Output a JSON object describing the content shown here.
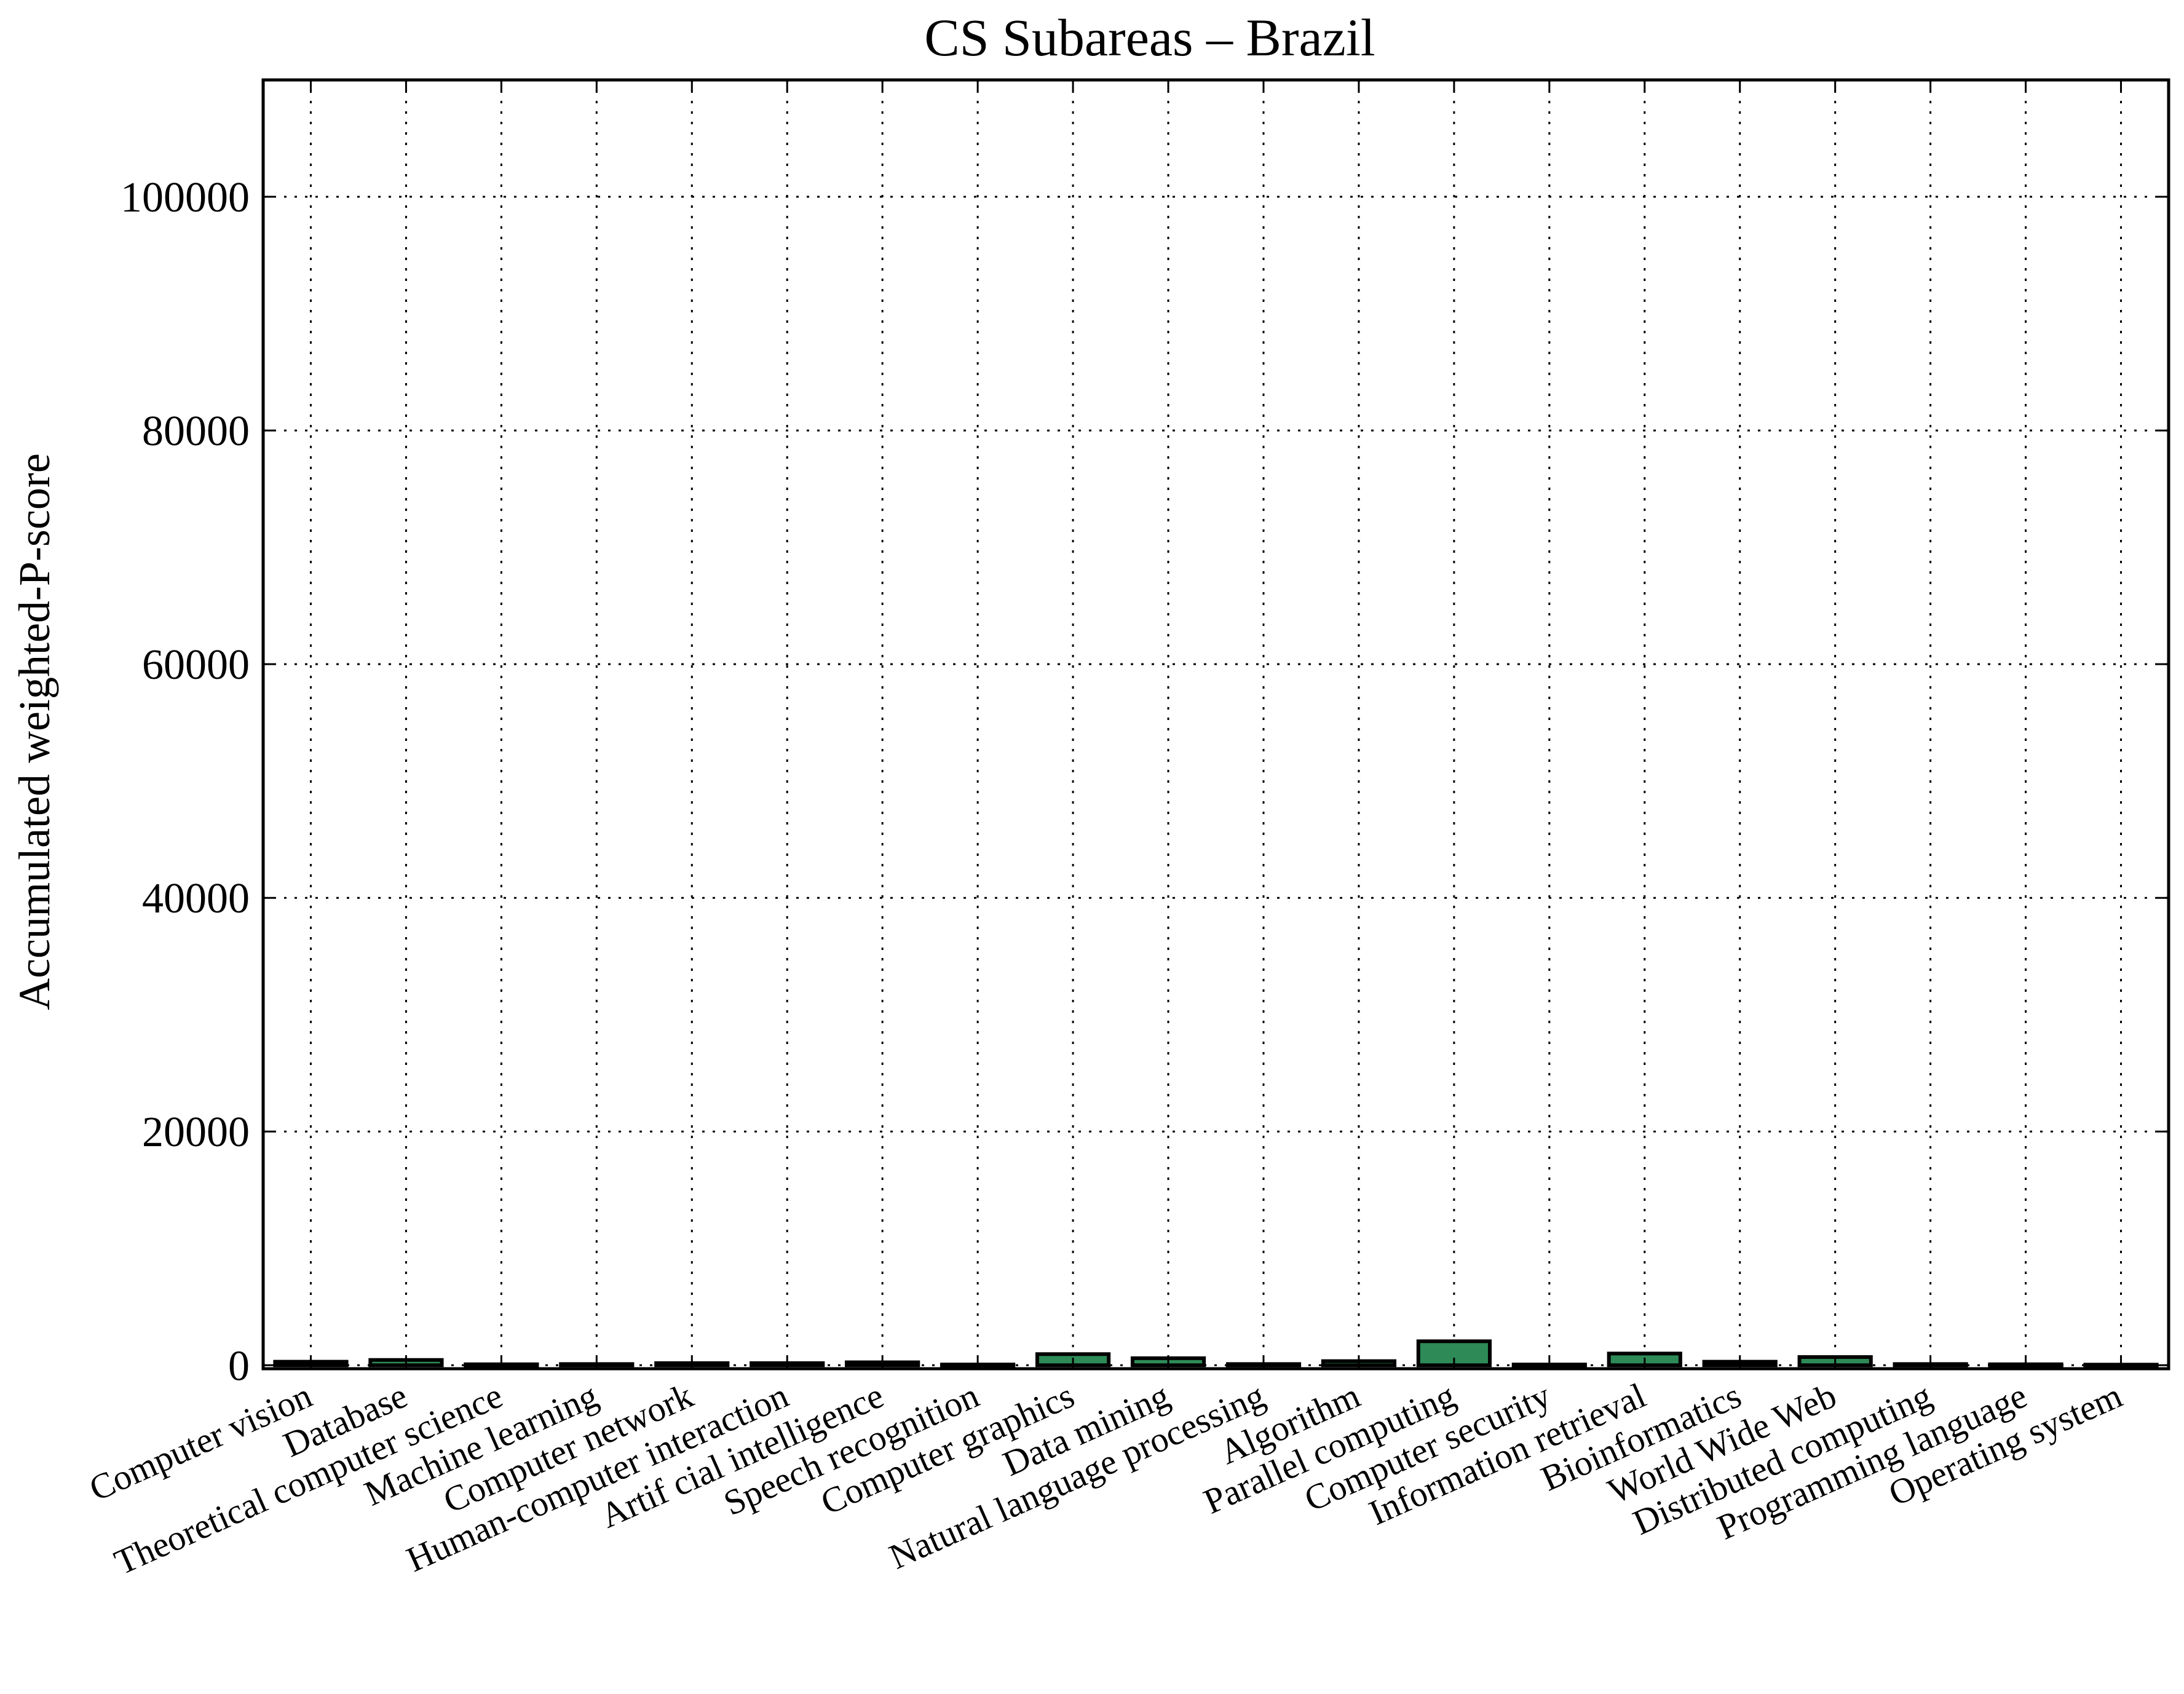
{
  "chart_data": {
    "type": "bar",
    "title": "CS Subareas – Brazil",
    "xlabel": "",
    "ylabel": "Accumulated weighted-P-score",
    "ylim": [
      -300,
      110000
    ],
    "yticks": [
      0,
      20000,
      40000,
      60000,
      80000,
      100000
    ],
    "ytick_labels": [
      "0",
      "20000",
      "40000",
      "60000",
      "80000",
      "100000"
    ],
    "grid": true,
    "bar_color": "#2e8b57",
    "bar_edge_color": "#000000",
    "categories": [
      "Computer vision",
      "Database",
      "Theoretical computer science",
      "Machine learning",
      "Computer network",
      "Human-computer interaction",
      "Artif cial intelligence",
      "Speech recognition",
      "Computer graphics",
      "Data mining",
      "Natural language processing",
      "Algorithm",
      "Parallel computing",
      "Computer security",
      "Information retrieval",
      "Bioinformatics",
      "World Wide Web",
      "Distributed computing",
      "Programming language",
      "Operating system"
    ],
    "values": [
      300,
      450,
      80,
      100,
      180,
      180,
      250,
      60,
      950,
      600,
      100,
      350,
      2050,
      60,
      1000,
      300,
      700,
      100,
      80,
      50
    ]
  }
}
